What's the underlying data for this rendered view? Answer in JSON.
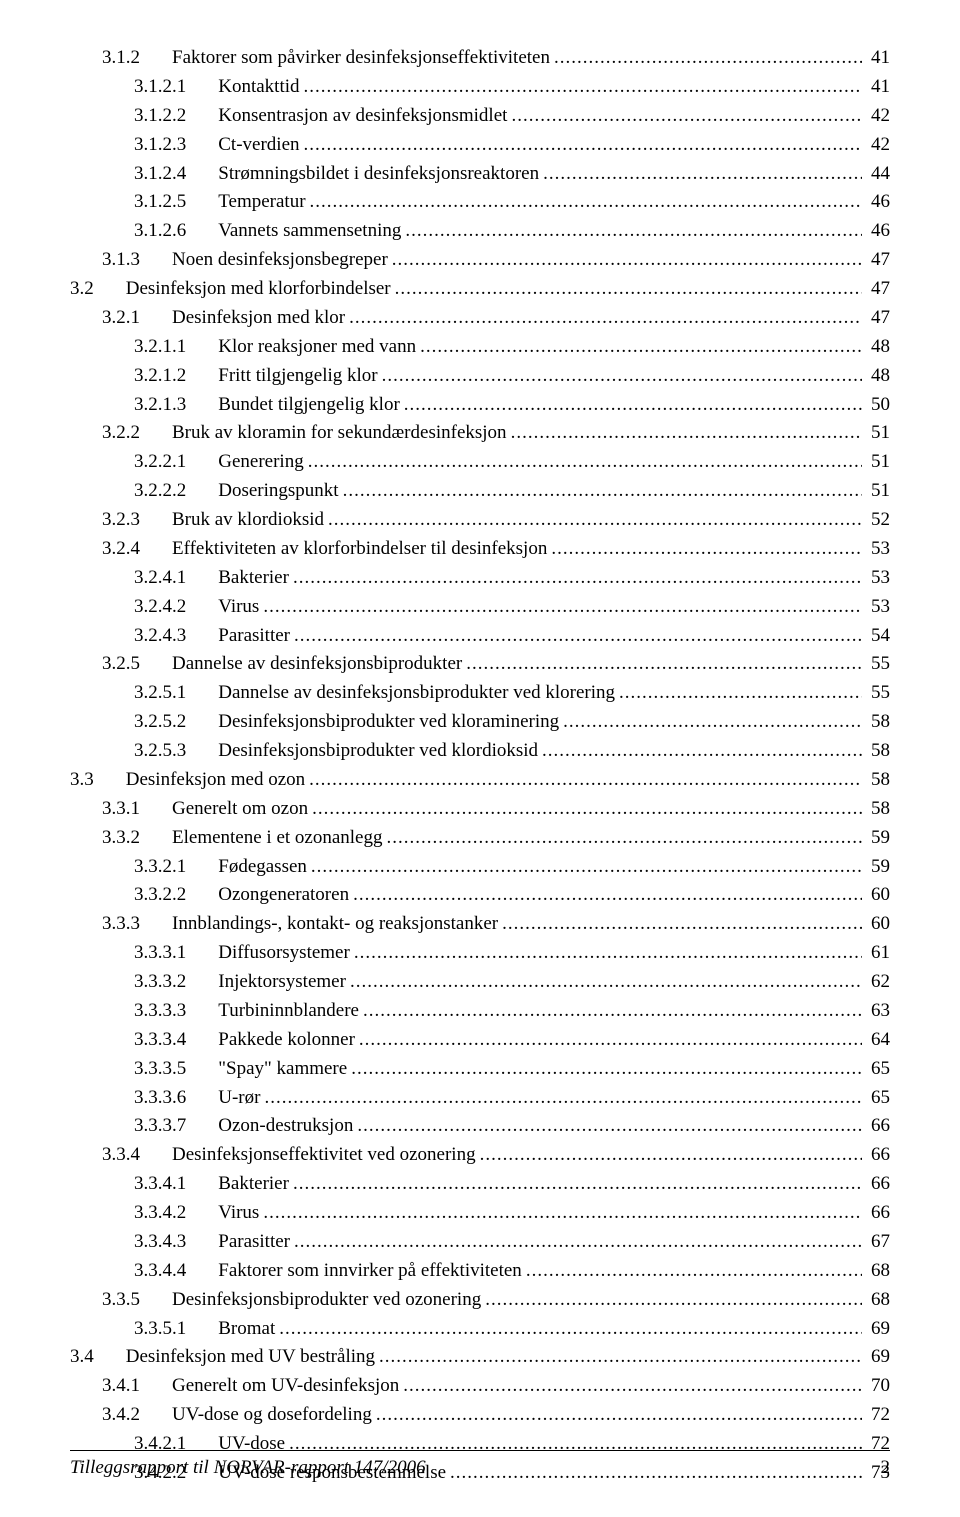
{
  "footer": {
    "text": "Tilleggsrapport til NORVAR-rapport 147/2006",
    "page": "2"
  },
  "toc": [
    {
      "indent": 1,
      "num": "3.1.2",
      "title": "Faktorer som påvirker desinfeksjonseffektiviteten",
      "page": "41"
    },
    {
      "indent": 2,
      "num": "3.1.2.1",
      "title": "Kontakttid",
      "page": "41"
    },
    {
      "indent": 2,
      "num": "3.1.2.2",
      "title": "Konsentrasjon av desinfeksjonsmidlet",
      "page": "42"
    },
    {
      "indent": 2,
      "num": "3.1.2.3",
      "title": "Ct-verdien",
      "page": "42"
    },
    {
      "indent": 2,
      "num": "3.1.2.4",
      "title": "Strømningsbildet i desinfeksjonsreaktoren",
      "page": "44"
    },
    {
      "indent": 2,
      "num": "3.1.2.5",
      "title": "Temperatur",
      "page": "46"
    },
    {
      "indent": 2,
      "num": "3.1.2.6",
      "title": "Vannets sammensetning",
      "page": "46"
    },
    {
      "indent": 1,
      "num": "3.1.3",
      "title": "Noen desinfeksjonsbegreper",
      "page": "47"
    },
    {
      "indent": 0,
      "num": "3.2",
      "title": "Desinfeksjon med klorforbindelser",
      "page": "47"
    },
    {
      "indent": 1,
      "num": "3.2.1",
      "title": "Desinfeksjon med klor",
      "page": "47"
    },
    {
      "indent": 2,
      "num": "3.2.1.1",
      "title": "Klor reaksjoner med vann",
      "page": "48"
    },
    {
      "indent": 2,
      "num": "3.2.1.2",
      "title": "Fritt tilgjengelig klor",
      "page": "48"
    },
    {
      "indent": 2,
      "num": "3.2.1.3",
      "title": "Bundet tilgjengelig klor",
      "page": "50"
    },
    {
      "indent": 1,
      "num": "3.2.2",
      "title": "Bruk av kloramin for sekundærdesinfeksjon",
      "page": "51"
    },
    {
      "indent": 2,
      "num": "3.2.2.1",
      "title": "Generering",
      "page": "51"
    },
    {
      "indent": 2,
      "num": "3.2.2.2",
      "title": "Doseringspunkt",
      "page": "51"
    },
    {
      "indent": 1,
      "num": "3.2.3",
      "title": "Bruk av klordioksid",
      "page": "52"
    },
    {
      "indent": 1,
      "num": "3.2.4",
      "title": "Effektiviteten av klorforbindelser til desinfeksjon",
      "page": "53"
    },
    {
      "indent": 2,
      "num": "3.2.4.1",
      "title": "Bakterier",
      "page": "53"
    },
    {
      "indent": 2,
      "num": "3.2.4.2",
      "title": "Virus",
      "page": "53"
    },
    {
      "indent": 2,
      "num": "3.2.4.3",
      "title": "Parasitter",
      "page": "54"
    },
    {
      "indent": 1,
      "num": "3.2.5",
      "title": "Dannelse av desinfeksjonsbiprodukter",
      "page": "55"
    },
    {
      "indent": 2,
      "num": "3.2.5.1",
      "title": "Dannelse av desinfeksjonsbiprodukter ved klorering",
      "page": "55"
    },
    {
      "indent": 2,
      "num": "3.2.5.2",
      "title": "Desinfeksjonsbiprodukter ved kloraminering",
      "page": "58"
    },
    {
      "indent": 2,
      "num": "3.2.5.3",
      "title": "Desinfeksjonsbiprodukter ved klordioksid",
      "page": "58"
    },
    {
      "indent": 0,
      "num": "3.3",
      "title": "Desinfeksjon med ozon",
      "page": "58"
    },
    {
      "indent": 1,
      "num": "3.3.1",
      "title": "Generelt om ozon",
      "page": "58"
    },
    {
      "indent": 1,
      "num": "3.3.2",
      "title": "Elementene i et ozonanlegg",
      "page": "59"
    },
    {
      "indent": 2,
      "num": "3.3.2.1",
      "title": "Fødegassen",
      "page": "59"
    },
    {
      "indent": 2,
      "num": "3.3.2.2",
      "title": "Ozongeneratoren",
      "page": "60"
    },
    {
      "indent": 1,
      "num": "3.3.3",
      "title": "Innblandings-, kontakt- og reaksjonstanker",
      "page": "60"
    },
    {
      "indent": 2,
      "num": "3.3.3.1",
      "title": "Diffusorsystemer",
      "page": "61"
    },
    {
      "indent": 2,
      "num": "3.3.3.2",
      "title": "Injektorsystemer",
      "page": "62"
    },
    {
      "indent": 2,
      "num": "3.3.3.3",
      "title": "Turbininnblandere",
      "page": "63"
    },
    {
      "indent": 2,
      "num": "3.3.3.4",
      "title": "Pakkede kolonner",
      "page": "64"
    },
    {
      "indent": 2,
      "num": "3.3.3.5",
      "title": "\"Spay\" kammere",
      "page": "65"
    },
    {
      "indent": 2,
      "num": "3.3.3.6",
      "title": "U-rør",
      "page": "65"
    },
    {
      "indent": 2,
      "num": "3.3.3.7",
      "title": "Ozon-destruksjon",
      "page": "66"
    },
    {
      "indent": 1,
      "num": "3.3.4",
      "title": "Desinfeksjonseffektivitet ved ozonering",
      "page": "66"
    },
    {
      "indent": 2,
      "num": "3.3.4.1",
      "title": "Bakterier",
      "page": "66"
    },
    {
      "indent": 2,
      "num": "3.3.4.2",
      "title": "Virus",
      "page": "66"
    },
    {
      "indent": 2,
      "num": "3.3.4.3",
      "title": "Parasitter",
      "page": "67"
    },
    {
      "indent": 2,
      "num": "3.3.4.4",
      "title": "Faktorer som innvirker på effektiviteten",
      "page": "68"
    },
    {
      "indent": 1,
      "num": "3.3.5",
      "title": "Desinfeksjonsbiprodukter ved ozonering",
      "page": "68"
    },
    {
      "indent": 2,
      "num": "3.3.5.1",
      "title": "Bromat",
      "page": "69"
    },
    {
      "indent": 0,
      "num": "3.4",
      "title": "Desinfeksjon med UV bestråling",
      "page": "69"
    },
    {
      "indent": 1,
      "num": "3.4.1",
      "title": "Generelt om UV-desinfeksjon",
      "page": "70"
    },
    {
      "indent": 1,
      "num": "3.4.2",
      "title": "UV-dose og dosefordeling",
      "page": "72"
    },
    {
      "indent": 2,
      "num": "3.4.2.1",
      "title": "UV-dose",
      "page": "72"
    },
    {
      "indent": 2,
      "num": "3.4.2.2",
      "title": "UV-dose responsbestemmelse",
      "page": "73"
    }
  ]
}
